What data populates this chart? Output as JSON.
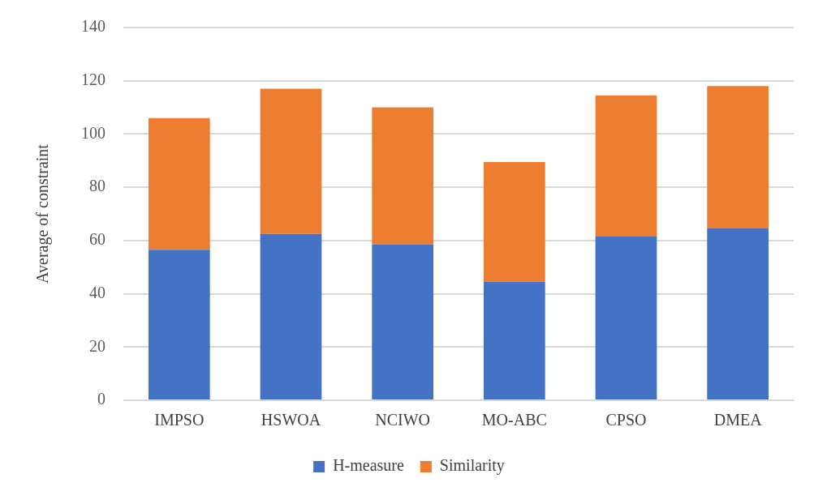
{
  "chart_data": {
    "type": "bar",
    "stacked": true,
    "ylabel": "Average of constraint",
    "categories": [
      "IMPSO",
      "HSWOA",
      "NCIWO",
      "MO-ABC",
      "CPSO",
      "DMEA"
    ],
    "series": [
      {
        "name": "H-measure",
        "color": "#4472c4",
        "values": [
          56.5,
          62.5,
          58.5,
          44.5,
          61.5,
          64.5
        ]
      },
      {
        "name": "Similarity",
        "color": "#ed7d31",
        "values": [
          49.5,
          54.5,
          51.5,
          45,
          53,
          53.5
        ]
      }
    ],
    "ylim": [
      0,
      140
    ],
    "yticks": [
      0,
      20,
      40,
      60,
      80,
      100,
      120,
      140
    ],
    "grid": "y",
    "legend": "bottom"
  }
}
